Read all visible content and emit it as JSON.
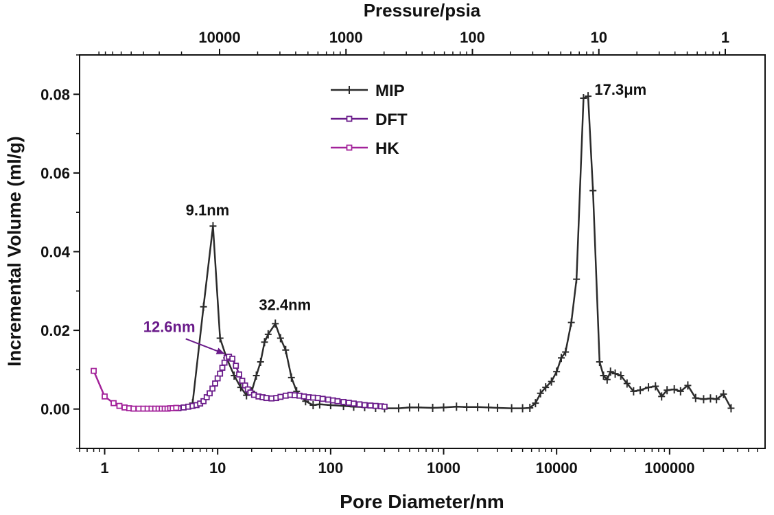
{
  "chart_data": {
    "type": "line",
    "xlabel": "Pore Diameter/nm",
    "ylabel": "Incremental Volume (ml/g)",
    "top_axis_label": "Pressure/psia",
    "x_scale": "log",
    "xlim": [
      0.6,
      700000
    ],
    "ylim": [
      -0.01,
      0.09
    ],
    "x_ticks": [
      1,
      10,
      100,
      1000,
      10000,
      100000
    ],
    "x_tick_labels": [
      "1",
      "10",
      "100",
      "1000",
      "10000",
      "100000"
    ],
    "y_ticks": [
      0.0,
      0.02,
      0.04,
      0.06,
      0.08
    ],
    "y_tick_labels": [
      "0.00",
      "0.02",
      "0.04",
      "0.06",
      "0.08"
    ],
    "top_ticks_diameter": [
      18000,
      180000,
      1800000,
      18000000,
      180000000
    ],
    "top_tick_labels": [
      "10000",
      "1000",
      "100",
      "10",
      "1"
    ],
    "legend_position": "top-center",
    "series": [
      {
        "name": "MIP",
        "color": "#2b2b2b",
        "marker": "plus",
        "x": [
          6,
          7.5,
          9.1,
          10.5,
          12,
          14,
          16,
          18,
          20,
          22,
          24,
          26,
          28,
          32.4,
          36,
          40,
          45,
          50,
          60,
          70,
          80,
          100,
          130,
          160,
          200,
          250,
          300,
          400,
          500,
          600,
          800,
          1000,
          1300,
          1600,
          2000,
          2500,
          3000,
          4000,
          5000,
          5800,
          6500,
          7200,
          8000,
          9000,
          10000,
          11000,
          12000,
          13500,
          15000,
          17300,
          19000,
          21000,
          24000,
          26000,
          28000,
          30000,
          33000,
          37000,
          42000,
          48000,
          55000,
          65000,
          75000,
          85000,
          95000,
          110000,
          125000,
          145000,
          170000,
          200000,
          230000,
          260000,
          300000,
          350000
        ],
        "y": [
          0.0015,
          0.026,
          0.0465,
          0.018,
          0.013,
          0.0085,
          0.0055,
          0.0035,
          0.0045,
          0.0085,
          0.012,
          0.017,
          0.019,
          0.0217,
          0.018,
          0.015,
          0.008,
          0.0045,
          0.002,
          0.001,
          0.0012,
          0.001,
          0.0008,
          0.0006,
          0.0005,
          0.0003,
          0.0002,
          0.0002,
          0.0004,
          0.0004,
          0.0003,
          0.0004,
          0.0006,
          0.0005,
          0.0005,
          0.0004,
          0.0003,
          0.0002,
          0.0002,
          0.0003,
          0.0015,
          0.004,
          0.0055,
          0.007,
          0.0095,
          0.013,
          0.0145,
          0.022,
          0.033,
          0.079,
          0.0795,
          0.0555,
          0.012,
          0.0085,
          0.0075,
          0.0095,
          0.009,
          0.0085,
          0.0065,
          0.0045,
          0.0048,
          0.0055,
          0.0058,
          0.0032,
          0.0048,
          0.005,
          0.0045,
          0.006,
          0.0028,
          0.0025,
          0.0027,
          0.0025,
          0.0038,
          0.0002
        ]
      },
      {
        "name": "DFT",
        "color": "#6a1b8a",
        "marker": "square",
        "x": [
          4.5,
          5,
          5.5,
          6,
          6.5,
          7,
          7.5,
          8,
          8.5,
          9,
          9.5,
          10,
          10.5,
          11,
          11.5,
          12,
          12.6,
          13.5,
          14.5,
          15.5,
          16.5,
          17.5,
          18.5,
          19.5,
          21,
          23,
          25,
          27,
          30,
          33,
          36,
          40,
          44,
          48,
          53,
          58,
          64,
          70,
          77,
          85,
          95,
          105,
          115,
          130,
          145,
          160,
          180,
          200,
          225,
          250,
          280,
          300
        ],
        "y": [
          0.0002,
          0.0004,
          0.0006,
          0.0008,
          0.001,
          0.0014,
          0.002,
          0.003,
          0.004,
          0.0052,
          0.0065,
          0.0078,
          0.009,
          0.0105,
          0.0118,
          0.013,
          0.0133,
          0.0128,
          0.011,
          0.0088,
          0.0072,
          0.006,
          0.005,
          0.0042,
          0.0036,
          0.0032,
          0.003,
          0.0028,
          0.0027,
          0.0028,
          0.0031,
          0.0034,
          0.0036,
          0.0035,
          0.0034,
          0.0032,
          0.003,
          0.0029,
          0.0028,
          0.0026,
          0.0024,
          0.0022,
          0.002,
          0.0018,
          0.0016,
          0.0014,
          0.0012,
          0.001,
          0.0009,
          0.0008,
          0.0007,
          0.0006
        ]
      },
      {
        "name": "HK",
        "color": "#a3229a",
        "marker": "square",
        "x": [
          0.8,
          1.0,
          1.2,
          1.35,
          1.5,
          1.65,
          1.8,
          2.0,
          2.2,
          2.4,
          2.6,
          2.8,
          3.0,
          3.2,
          3.4,
          3.6,
          3.8,
          4.0,
          4.3
        ],
        "y": [
          0.0097,
          0.0032,
          0.0015,
          0.0008,
          0.0004,
          0.0002,
          0.0001,
          0.0001,
          0.0001,
          0.0001,
          0.0001,
          0.0001,
          0.0001,
          0.0001,
          0.0001,
          0.0001,
          0.0002,
          0.0002,
          0.0003
        ]
      }
    ],
    "annotations": [
      {
        "text": "9.1nm",
        "x": 9.1,
        "y": 0.0465,
        "color": "#111111"
      },
      {
        "text": "32.4nm",
        "x": 32.4,
        "y": 0.0217,
        "color": "#111111"
      },
      {
        "text": "17.3μm",
        "x": 17300,
        "y": 0.0795,
        "color": "#111111"
      },
      {
        "text": "12.6nm",
        "x": 12.6,
        "y": 0.0133,
        "color": "#6a1b8a",
        "arrow": true
      }
    ]
  }
}
